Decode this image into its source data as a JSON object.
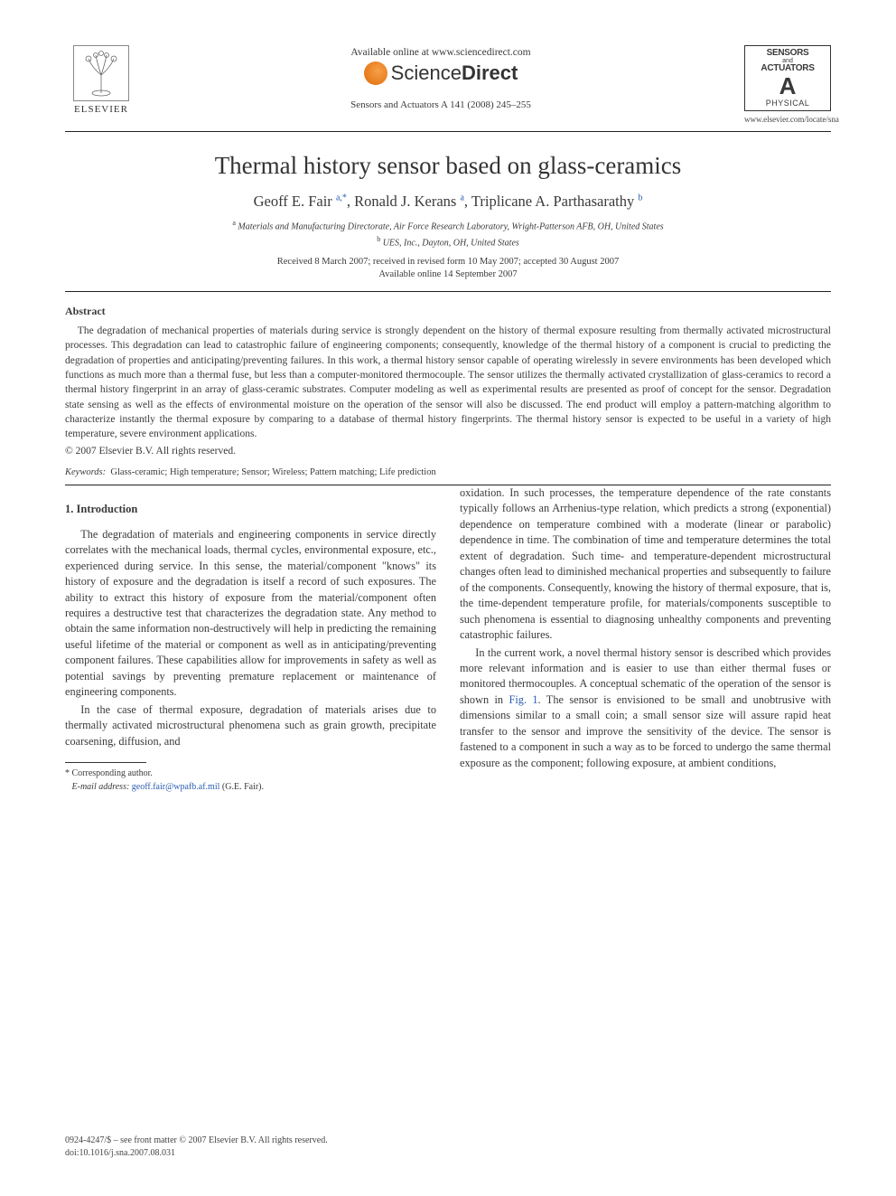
{
  "header": {
    "elsevier_label": "ELSEVIER",
    "available_online": "Available online at www.sciencedirect.com",
    "sciencedirect_html": "Science<b>Direct</b>",
    "citation": "Sensors and Actuators A 141 (2008) 245–255",
    "journal_box": {
      "line1": "SENSORS",
      "line2": "and",
      "line3": "ACTUATORS",
      "letter": "A",
      "physical": "PHYSICAL"
    },
    "journal_url": "www.elsevier.com/locate/sna"
  },
  "article": {
    "title": "Thermal history sensor based on glass-ceramics",
    "authors_html": "Geoff E. Fair <sup><a href=\"#\">a</a>,<a href=\"#\">*</a></sup>, Ronald J. Kerans <sup><a href=\"#\">a</a></sup>, Triplicane A. Parthasarathy <sup><a href=\"#\">b</a></sup>",
    "affiliations": [
      "<sup>a</sup> Materials and Manufacturing Directorate, Air Force Research Laboratory, Wright-Patterson AFB, OH, United States",
      "<sup>b</sup> UES, Inc., Dayton, OH, United States"
    ],
    "received": "Received 8 March 2007; received in revised form 10 May 2007; accepted 30 August 2007",
    "available": "Available online 14 September 2007"
  },
  "abstract": {
    "heading": "Abstract",
    "body": "The degradation of mechanical properties of materials during service is strongly dependent on the history of thermal exposure resulting from thermally activated microstructural processes. This degradation can lead to catastrophic failure of engineering components; consequently, knowledge of the thermal history of a component is crucial to predicting the degradation of properties and anticipating/preventing failures. In this work, a thermal history sensor capable of operating wirelessly in severe environments has been developed which functions as much more than a thermal fuse, but less than a computer-monitored thermocouple. The sensor utilizes the thermally activated crystallization of glass-ceramics to record a thermal history fingerprint in an array of glass-ceramic substrates. Computer modeling as well as experimental results are presented as proof of concept for the sensor. Degradation state sensing as well as the effects of environmental moisture on the operation of the sensor will also be discussed. The end product will employ a pattern-matching algorithm to characterize instantly the thermal exposure by comparing to a database of thermal history fingerprints. The thermal history sensor is expected to be useful in a variety of high temperature, severe environment applications.",
    "copyright": "© 2007 Elsevier B.V. All rights reserved.",
    "keywords_label": "Keywords:",
    "keywords": "Glass-ceramic; High temperature; Sensor; Wireless; Pattern matching; Life prediction"
  },
  "body": {
    "section_number": "1.",
    "section_title": "Introduction",
    "p1": "The degradation of materials and engineering components in service directly correlates with the mechanical loads, thermal cycles, environmental exposure, etc., experienced during service. In this sense, the material/component \"knows\" its history of exposure and the degradation is itself a record of such exposures. The ability to extract this history of exposure from the material/component often requires a destructive test that characterizes the degradation state. Any method to obtain the same information non-destructively will help in predicting the remaining useful lifetime of the material or component as well as in anticipating/preventing component failures. These capabilities allow for improvements in safety as well as potential savings by preventing premature replacement or maintenance of engineering components.",
    "p2": "In the case of thermal exposure, degradation of materials arises due to thermally activated microstructural phenomena such as grain growth, precipitate coarsening, diffusion, and",
    "p2b": "oxidation. In such processes, the temperature dependence of the rate constants typically follows an Arrhenius-type relation, which predicts a strong (exponential) dependence on temperature combined with a moderate (linear or parabolic) dependence in time. The combination of time and temperature determines the total extent of degradation. Such time- and temperature-dependent microstructural changes often lead to diminished mechanical properties and subsequently to failure of the components. Consequently, knowing the history of thermal exposure, that is, the time-dependent temperature profile, for materials/components susceptible to such phenomena is essential to diagnosing unhealthy components and preventing catastrophic failures.",
    "p3_html": "In the current work, a novel thermal history sensor is described which provides more relevant information and is easier to use than either thermal fuses or monitored thermocouples. A conceptual schematic of the operation of the sensor is shown in <span class=\"figref\">Fig. 1</span>. The sensor is envisioned to be small and unobtrusive with dimensions similar to a small coin; a small sensor size will assure rapid heat transfer to the sensor and improve the sensitivity of the device. The sensor is fastened to a component in such a way as to be forced to undergo the same thermal exposure as the component; following exposure, at ambient conditions,"
  },
  "corresponding": {
    "label": "* Corresponding author.",
    "email_label": "E-mail address:",
    "email": "geoff.fair@wpafb.af.mil",
    "email_who": "(G.E. Fair)."
  },
  "footer": {
    "line1": "0924-4247/$ – see front matter © 2007 Elsevier B.V. All rights reserved.",
    "line2": "doi:10.1016/j.sna.2007.08.031"
  },
  "colors": {
    "link": "#2a5db0",
    "text": "#3a3a3a",
    "rule": "#222222"
  }
}
